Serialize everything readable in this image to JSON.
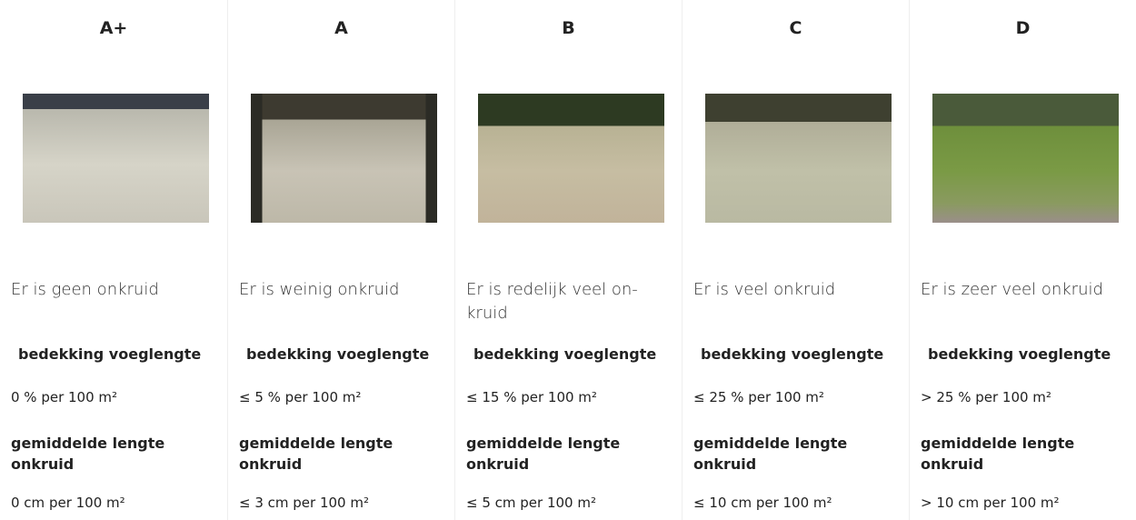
{
  "columns": [
    {
      "grade": "A+",
      "description": [
        "Er is geen onkruid"
      ],
      "coverage_label": "bedekking voeglengte",
      "coverage": "0 % per 100 m²",
      "length_label": "gemiddelde lengte onkruid",
      "length": "0 cm per 100 m²"
    },
    {
      "grade": "A",
      "description": [
        "Er is weinig onkruid"
      ],
      "coverage_label": "bedekking voeglengte",
      "coverage": "≤ 5 % per 100 m²",
      "length_label": "gemiddelde lengte onkruid",
      "length": "≤ 3 cm per 100 m²"
    },
    {
      "grade": "B",
      "description": [
        "Er is redelijk veel on-",
        "kruid"
      ],
      "coverage_label": "bedekking voeglengte",
      "coverage": "≤ 15 % per 100 m²",
      "length_label": "gemiddelde lengte onkruid",
      "length": "≤ 5 cm per 100 m²"
    },
    {
      "grade": "C",
      "description": [
        "Er is veel onkruid"
      ],
      "coverage_label": "bedekking voeglengte",
      "coverage": "≤ 25 % per 100 m²",
      "length_label": "gemiddelde lengte onkruid",
      "length": "≤ 10 cm per 100 m²"
    },
    {
      "grade": "D",
      "description": [
        "Er is zeer veel onkruid"
      ],
      "coverage_label": "bedekking voeglengte",
      "coverage": "> 25 % per 100 m²",
      "length_label": "gemiddelde lengte onkruid",
      "length": "> 10 cm per 100 m²"
    }
  ]
}
